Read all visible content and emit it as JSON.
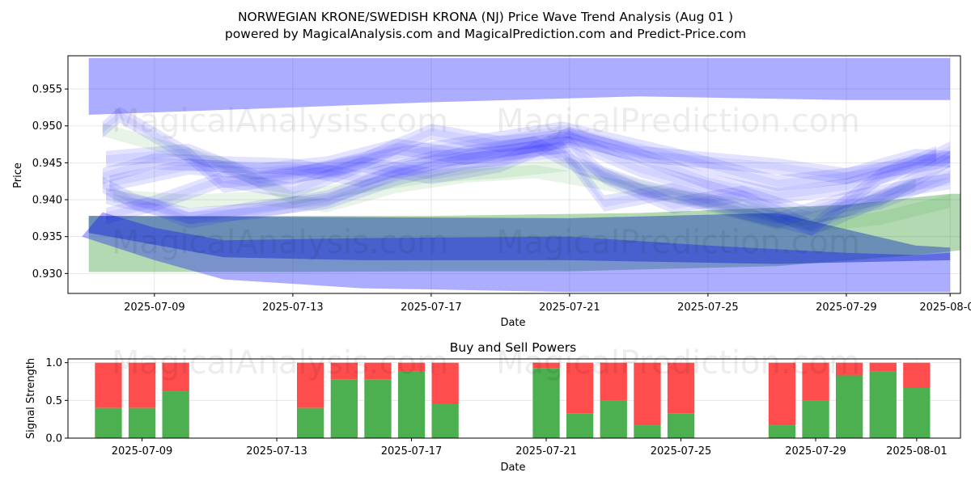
{
  "title_line1": "NORWEGIAN KRONE/SWEDISH KRONA (NJ) Price Wave Trend Analysis (Aug 01 )",
  "title_line2": "powered by MagicalAnalysis.com and MagicalPrediction.com and Predict-Price.com",
  "watermarks": [
    "MagicalAnalysis.com",
    "MagicalPrediction.com"
  ],
  "colors": {
    "wave": "#0000ff",
    "green": "#008000",
    "buy": "#4caf50",
    "sell": "#ff4c4c",
    "dark_band": "#5a7ac8"
  },
  "chart_data": [
    {
      "type": "area",
      "name": "price-wave-chart",
      "xlabel": "Date",
      "ylabel": "Price",
      "ylim": [
        0.9273,
        0.9595
      ],
      "xlim_days": [
        -2.5,
        23.3
      ],
      "x_start_date": "2025-07-09",
      "x_ticks": [
        {
          "day": 0,
          "label": "2025-07-09"
        },
        {
          "day": 4,
          "label": "2025-07-13"
        },
        {
          "day": 8,
          "label": "2025-07-17"
        },
        {
          "day": 12,
          "label": "2025-07-21"
        },
        {
          "day": 16,
          "label": "2025-07-25"
        },
        {
          "day": 20,
          "label": "2025-07-29"
        },
        {
          "day": 23,
          "label": "2025-08-01"
        }
      ],
      "y_ticks": [
        {
          "value": 0.93,
          "label": "0.930"
        },
        {
          "value": 0.935,
          "label": "0.935"
        },
        {
          "value": 0.94,
          "label": "0.940"
        },
        {
          "value": 0.945,
          "label": "0.945"
        },
        {
          "value": 0.95,
          "label": "0.950"
        },
        {
          "value": 0.955,
          "label": "0.955"
        }
      ],
      "bands": [
        {
          "name": "upper-blue-band",
          "color": "#0000ff",
          "opacity": 0.32,
          "upper": [
            [
              -1.9,
              0.9592
            ],
            [
              23,
              0.9592
            ]
          ],
          "lower": [
            [
              -1.9,
              0.9515
            ],
            [
              4,
              0.9525
            ],
            [
              8,
              0.9532
            ],
            [
              14,
              0.954
            ],
            [
              20,
              0.9535
            ],
            [
              23,
              0.9535
            ]
          ]
        },
        {
          "name": "green-trend-band",
          "color": "#008000",
          "opacity": 0.3,
          "upper": [
            [
              -1.9,
              0.9378
            ],
            [
              8,
              0.9378
            ],
            [
              14,
              0.9382
            ],
            [
              20,
              0.9393
            ],
            [
              23,
              0.9408
            ],
            [
              23.95,
              0.9408
            ]
          ],
          "lower": [
            [
              -1.9,
              0.9302
            ],
            [
              4,
              0.9302
            ],
            [
              8,
              0.9303
            ],
            [
              12,
              0.9303
            ],
            [
              18,
              0.931
            ],
            [
              22,
              0.9325
            ],
            [
              24,
              0.9335
            ]
          ]
        },
        {
          "name": "dark-blue-band",
          "color": "#3050b8",
          "opacity": 0.55,
          "upper": [
            [
              -1.9,
              0.9378
            ],
            [
              12,
              0.9375
            ],
            [
              18,
              0.9382
            ],
            [
              22,
              0.9338
            ],
            [
              23,
              0.9335
            ]
          ],
          "lower": [
            [
              -1.9,
              0.9355
            ],
            [
              2,
              0.9322
            ],
            [
              6,
              0.9318
            ],
            [
              12,
              0.9318
            ],
            [
              18,
              0.9313
            ],
            [
              23,
              0.9318
            ]
          ]
        },
        {
          "name": "lower-blue-band",
          "color": "#0000ff",
          "opacity": 0.32,
          "upper": [
            [
              -2.1,
              0.935
            ],
            [
              -1.5,
              0.9383
            ],
            [
              0,
              0.9362
            ],
            [
              2,
              0.9345
            ],
            [
              6,
              0.9348
            ],
            [
              12,
              0.935
            ],
            [
              16,
              0.9338
            ],
            [
              20,
              0.9328
            ],
            [
              22,
              0.9325
            ],
            [
              23,
              0.9328
            ]
          ],
          "lower": [
            [
              -2.1,
              0.935
            ],
            [
              0,
              0.9318
            ],
            [
              2,
              0.9292
            ],
            [
              6,
              0.928
            ],
            [
              12,
              0.9275
            ],
            [
              18,
              0.9275
            ],
            [
              23,
              0.9275
            ]
          ]
        }
      ],
      "wave_series": [
        {
          "values": [
            [
              -1.5,
              0.9495
            ],
            [
              -1,
              0.9515
            ],
            [
              1,
              0.946
            ],
            [
              2,
              0.942
            ],
            [
              4,
              0.9432
            ],
            [
              6,
              0.9452
            ],
            [
              8,
              0.9492
            ],
            [
              10,
              0.9475
            ],
            [
              12,
              0.9485
            ],
            [
              14,
              0.9462
            ],
            [
              18,
              0.9445
            ],
            [
              20,
              0.9432
            ],
            [
              23,
              0.9455
            ]
          ]
        },
        {
          "values": [
            [
              -1.4,
              0.9455
            ],
            [
              1,
              0.9465
            ],
            [
              3,
              0.9428
            ],
            [
              5,
              0.944
            ],
            [
              7,
              0.946
            ],
            [
              9,
              0.9475
            ],
            [
              11.8,
              0.9495
            ],
            [
              13,
              0.9482
            ],
            [
              15,
              0.946
            ],
            [
              18,
              0.9422
            ],
            [
              20,
              0.9432
            ],
            [
              22,
              0.9458
            ],
            [
              23,
              0.9455
            ]
          ]
        },
        {
          "values": [
            [
              -1.5,
              0.9432
            ],
            [
              0,
              0.9452
            ],
            [
              2,
              0.9448
            ],
            [
              4,
              0.9445
            ],
            [
              6,
              0.9428
            ],
            [
              8,
              0.9455
            ],
            [
              10,
              0.9462
            ],
            [
              12,
              0.9475
            ],
            [
              13,
              0.9432
            ],
            [
              15,
              0.9392
            ],
            [
              17,
              0.9408
            ],
            [
              19,
              0.9378
            ],
            [
              21,
              0.9398
            ],
            [
              23,
              0.9435
            ]
          ]
        },
        {
          "values": [
            [
              -1.4,
              0.9405
            ],
            [
              0,
              0.939
            ],
            [
              1,
              0.9372
            ],
            [
              3,
              0.9388
            ],
            [
              5,
              0.9398
            ],
            [
              7,
              0.943
            ],
            [
              9,
              0.9452
            ],
            [
              11.8,
              0.9468
            ],
            [
              13,
              0.9395
            ],
            [
              15,
              0.9412
            ],
            [
              17,
              0.9385
            ],
            [
              19,
              0.9362
            ],
            [
              21,
              0.9432
            ],
            [
              22.6,
              0.9462
            ]
          ]
        },
        {
          "values": [
            [
              -1.4,
              0.9378
            ],
            [
              0,
              0.9395
            ],
            [
              2,
              0.9428
            ],
            [
              4,
              0.9412
            ],
            [
              6,
              0.9448
            ],
            [
              8,
              0.9432
            ],
            [
              10,
              0.9448
            ],
            [
              12,
              0.9488
            ],
            [
              14,
              0.946
            ],
            [
              16,
              0.9425
            ],
            [
              18,
              0.9405
            ],
            [
              20,
              0.9418
            ],
            [
              22,
              0.9445
            ],
            [
              23,
              0.9468
            ]
          ]
        },
        {
          "values": [
            [
              -1.3,
              0.9422
            ],
            [
              1,
              0.9445
            ],
            [
              3,
              0.9438
            ],
            [
              5,
              0.9448
            ],
            [
              7,
              0.9472
            ],
            [
              9,
              0.9458
            ],
            [
              11,
              0.9475
            ],
            [
              12.3,
              0.9445
            ],
            [
              14,
              0.9418
            ],
            [
              16,
              0.9395
            ],
            [
              18,
              0.9372
            ],
            [
              20,
              0.94
            ],
            [
              22,
              0.9418
            ],
            [
              23,
              0.9425
            ]
          ]
        },
        {
          "values": [
            [
              -1.5,
              0.942
            ],
            [
              -0.6,
              0.9398
            ],
            [
              1,
              0.9378
            ],
            [
              3,
              0.9385
            ],
            [
              5,
              0.9402
            ],
            [
              7,
              0.9438
            ],
            [
              9,
              0.9462
            ],
            [
              12,
              0.9482
            ],
            [
              14,
              0.9442
            ],
            [
              17,
              0.9402
            ],
            [
              19,
              0.9362
            ],
            [
              21,
              0.9402
            ],
            [
              23,
              0.9455
            ]
          ]
        }
      ],
      "green_waves": [
        {
          "values": [
            [
              -1.5,
              0.9495
            ],
            [
              0,
              0.9475
            ],
            [
              2,
              0.9448
            ],
            [
              4,
              0.9402
            ],
            [
              6,
              0.9418
            ],
            [
              8,
              0.9432
            ],
            [
              10,
              0.9438
            ],
            [
              12,
              0.9448
            ],
            [
              14,
              0.9418
            ],
            [
              16,
              0.9395
            ],
            [
              18,
              0.9368
            ],
            [
              20,
              0.9385
            ],
            [
              22,
              0.942
            ]
          ]
        },
        {
          "values": [
            [
              -1.2,
              0.9405
            ],
            [
              1,
              0.9398
            ],
            [
              3,
              0.9402
            ],
            [
              5,
              0.9392
            ],
            [
              7,
              0.9418
            ],
            [
              9,
              0.9432
            ],
            [
              11,
              0.9438
            ],
            [
              13,
              0.9422
            ],
            [
              15,
              0.9405
            ],
            [
              17,
              0.9392
            ],
            [
              19,
              0.9365
            ],
            [
              21,
              0.9375
            ],
            [
              23,
              0.9398
            ]
          ]
        }
      ]
    },
    {
      "type": "bar",
      "name": "buy-sell-powers-chart",
      "title": "Buy and Sell Powers",
      "xlabel": "Date",
      "ylabel": "Signal Strength",
      "ylim": [
        0,
        1.05
      ],
      "xlim_days": [
        -2.2,
        24.3
      ],
      "x_ticks": [
        {
          "day": 0,
          "label": "2025-07-09"
        },
        {
          "day": 4,
          "label": "2025-07-13"
        },
        {
          "day": 8,
          "label": "2025-07-17"
        },
        {
          "day": 12,
          "label": "2025-07-21"
        },
        {
          "day": 16,
          "label": "2025-07-25"
        },
        {
          "day": 20,
          "label": "2025-07-29"
        },
        {
          "day": 23,
          "label": "2025-08-01"
        }
      ],
      "y_ticks": [
        {
          "value": 0,
          "label": "0.0"
        },
        {
          "value": 0.5,
          "label": "0.5"
        },
        {
          "value": 1,
          "label": "1.0"
        }
      ],
      "bars": [
        {
          "day": -1,
          "buy": 0.4
        },
        {
          "day": 0,
          "buy": 0.4
        },
        {
          "day": 1,
          "buy": 0.62
        },
        {
          "day": 5,
          "buy": 0.4
        },
        {
          "day": 6,
          "buy": 0.78
        },
        {
          "day": 7,
          "buy": 0.78
        },
        {
          "day": 8,
          "buy": 0.88
        },
        {
          "day": 9,
          "buy": 0.45
        },
        {
          "day": 12,
          "buy": 0.93
        },
        {
          "day": 13,
          "buy": 0.33
        },
        {
          "day": 14,
          "buy": 0.5
        },
        {
          "day": 15,
          "buy": 0.17
        },
        {
          "day": 16,
          "buy": 0.33
        },
        {
          "day": 19,
          "buy": 0.17
        },
        {
          "day": 20,
          "buy": 0.5
        },
        {
          "day": 21,
          "buy": 0.83
        },
        {
          "day": 22,
          "buy": 0.88
        },
        {
          "day": 23,
          "buy": 0.67
        }
      ]
    }
  ]
}
